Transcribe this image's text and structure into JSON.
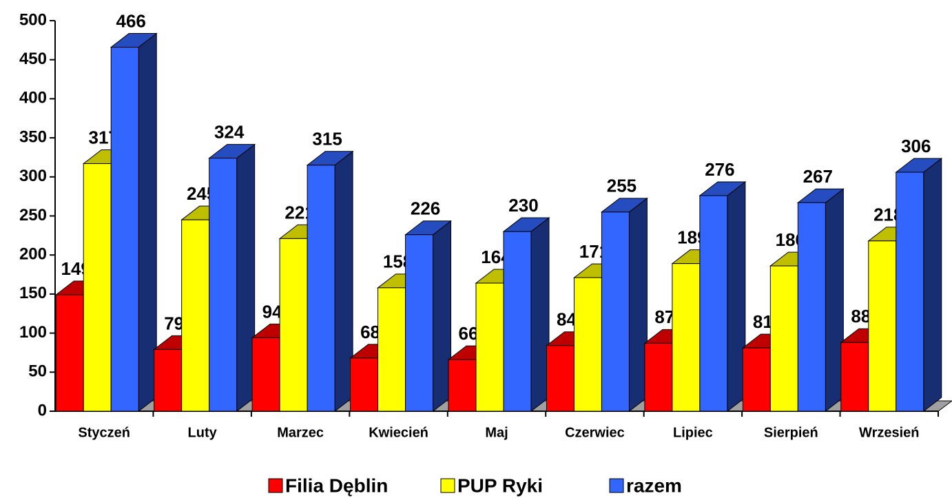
{
  "chart_data": {
    "type": "bar3d",
    "categories": [
      "Styczeń",
      "Luty",
      "Marzec",
      "Kwiecień",
      "Maj",
      "Czerwiec",
      "Lipiec",
      "Sierpień",
      "Wrzesień"
    ],
    "series": [
      {
        "name": "Filia Dęblin",
        "color": "#ff0000",
        "values": [
          149,
          79,
          94,
          68,
          66,
          84,
          87,
          81,
          88
        ]
      },
      {
        "name": "PUP Ryki",
        "color": "#ffff00",
        "values": [
          317,
          245,
          221,
          158,
          164,
          171,
          189,
          186,
          218
        ]
      },
      {
        "name": "razem",
        "color": "#3366ff",
        "values": [
          466,
          324,
          315,
          226,
          230,
          255,
          276,
          267,
          306
        ]
      }
    ],
    "ylim": [
      0,
      500
    ],
    "yticks": [
      0,
      50,
      100,
      150,
      200,
      250,
      300,
      350,
      400,
      450,
      500
    ],
    "legend": "bottom"
  }
}
